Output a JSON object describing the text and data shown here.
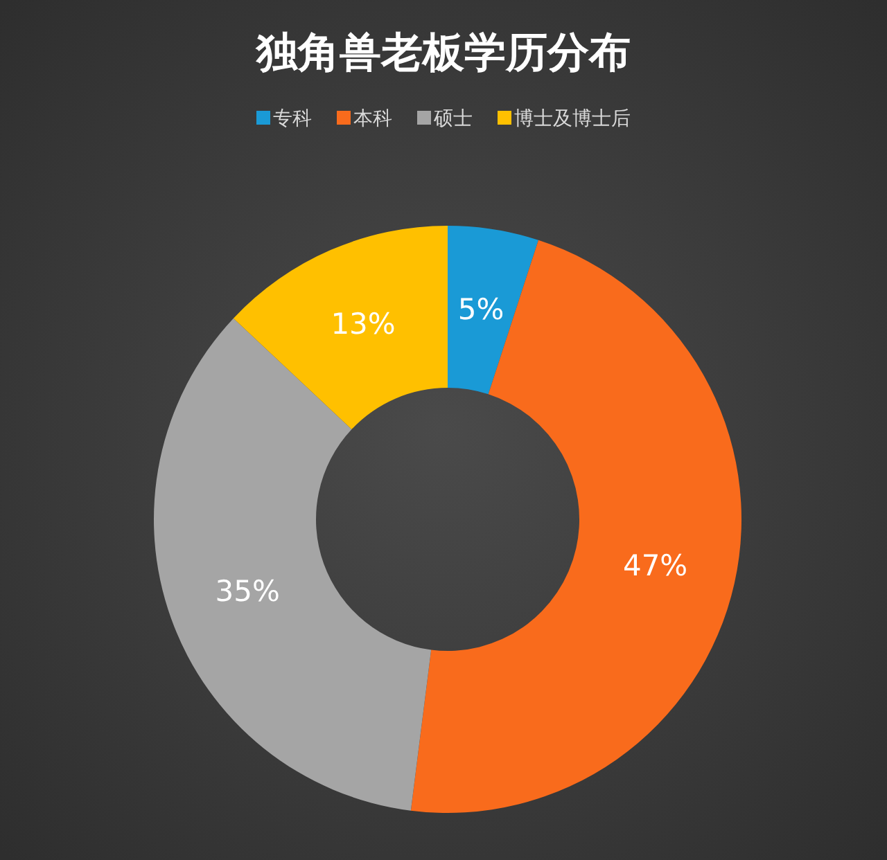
{
  "chart_data": {
    "type": "donut",
    "title": "独角兽老板学历分布",
    "categories": [
      "专科",
      "本科",
      "硕士",
      "博士及博士后"
    ],
    "values": [
      5,
      47,
      35,
      13
    ],
    "colors": [
      "#1a9ad6",
      "#f96b1c",
      "#a5a5a5",
      "#ffc000"
    ],
    "value_labels": [
      "5%",
      "47%",
      "35%",
      "13%"
    ],
    "legend": "top"
  }
}
